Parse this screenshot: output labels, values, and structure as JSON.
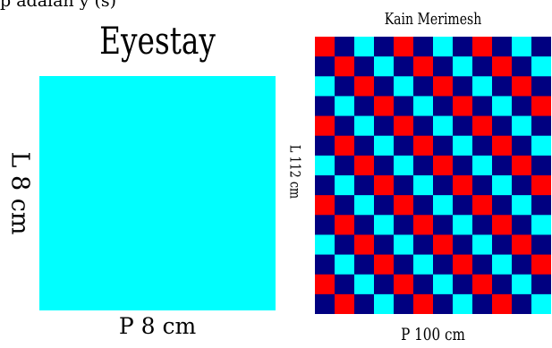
{
  "header": {
    "fragment": "p adalah y (s)"
  },
  "left_panel": {
    "title": "Eyestay",
    "side_label": "L 8 cm",
    "bottom_label": "P 8 cm",
    "fill_color": "#00ffff"
  },
  "right_panel": {
    "title": "Kain Merimesh",
    "side_label": "L 112 cm",
    "bottom_label": "P 100 cm",
    "grid_columns": 12,
    "grid_rows": 14,
    "colors": [
      "#ff0000",
      "#000080",
      "#00ffff"
    ]
  }
}
